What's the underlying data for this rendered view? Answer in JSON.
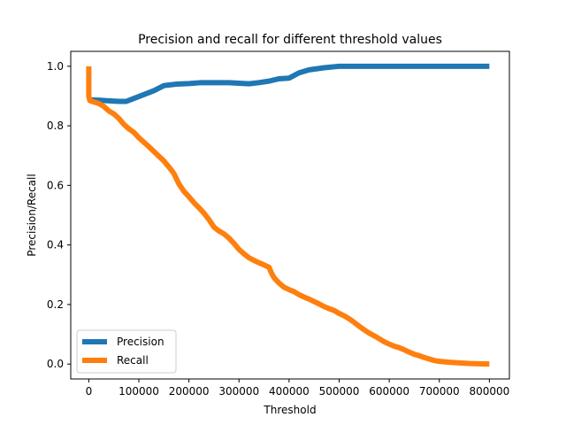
{
  "chart_data": {
    "type": "line",
    "title": "Precision and recall for different threshold values",
    "xlabel": "Threshold",
    "ylabel": "Precision/Recall",
    "xlim": [
      -36000,
      840000
    ],
    "ylim": [
      -0.05,
      1.05
    ],
    "xticks": [
      0,
      100000,
      200000,
      300000,
      400000,
      500000,
      600000,
      700000,
      800000
    ],
    "xtick_labels": [
      "0",
      "100000",
      "200000",
      "300000",
      "400000",
      "500000",
      "600000",
      "700000",
      "800000"
    ],
    "yticks": [
      0.0,
      0.2,
      0.4,
      0.6,
      0.8,
      1.0
    ],
    "ytick_labels": [
      "0.0",
      "0.2",
      "0.4",
      "0.6",
      "0.8",
      "1.0"
    ],
    "grid": false,
    "legend_position": "lower-left",
    "series": [
      {
        "name": "Precision",
        "color": "#1f77b4",
        "x": [
          0,
          20000,
          40000,
          60000,
          75000,
          90000,
          110000,
          130000,
          150000,
          175000,
          200000,
          225000,
          250000,
          280000,
          300000,
          320000,
          340000,
          360000,
          380000,
          400000,
          420000,
          440000,
          470000,
          500000,
          550000,
          600000,
          700000,
          800000
        ],
        "y": [
          0.887,
          0.886,
          0.884,
          0.882,
          0.882,
          0.892,
          0.905,
          0.918,
          0.935,
          0.94,
          0.942,
          0.945,
          0.945,
          0.945,
          0.943,
          0.941,
          0.945,
          0.95,
          0.958,
          0.96,
          0.978,
          0.988,
          0.995,
          1.0,
          1.0,
          1.0,
          1.0,
          1.0
        ]
      },
      {
        "name": "Recall",
        "color": "#ff7f0e",
        "x": [
          0,
          0,
          2000,
          10000,
          20000,
          30000,
          40000,
          50000,
          60000,
          70000,
          80000,
          90000,
          100000,
          110000,
          120000,
          130000,
          140000,
          150000,
          160000,
          170000,
          180000,
          190000,
          200000,
          210000,
          220000,
          230000,
          240000,
          250000,
          260000,
          270000,
          280000,
          290000,
          300000,
          310000,
          320000,
          330000,
          340000,
          350000,
          360000,
          365000,
          370000,
          380000,
          390000,
          400000,
          410000,
          420000,
          430000,
          440000,
          450000,
          460000,
          470000,
          480000,
          490000,
          500000,
          510000,
          520000,
          530000,
          540000,
          550000,
          560000,
          570000,
          580000,
          590000,
          600000,
          610000,
          620000,
          630000,
          640000,
          650000,
          660000,
          670000,
          680000,
          690000,
          700000,
          720000,
          740000,
          760000,
          780000,
          800000
        ],
        "y": [
          1.0,
          0.9,
          0.885,
          0.88,
          0.875,
          0.865,
          0.85,
          0.84,
          0.825,
          0.805,
          0.79,
          0.778,
          0.76,
          0.745,
          0.73,
          0.714,
          0.698,
          0.682,
          0.662,
          0.64,
          0.605,
          0.58,
          0.562,
          0.542,
          0.525,
          0.507,
          0.485,
          0.46,
          0.447,
          0.437,
          0.423,
          0.405,
          0.385,
          0.37,
          0.357,
          0.348,
          0.34,
          0.333,
          0.325,
          0.305,
          0.29,
          0.272,
          0.258,
          0.25,
          0.243,
          0.233,
          0.225,
          0.218,
          0.21,
          0.202,
          0.193,
          0.186,
          0.18,
          0.17,
          0.162,
          0.152,
          0.14,
          0.127,
          0.115,
          0.104,
          0.095,
          0.085,
          0.075,
          0.067,
          0.06,
          0.055,
          0.048,
          0.04,
          0.033,
          0.028,
          0.022,
          0.017,
          0.012,
          0.009,
          0.006,
          0.004,
          0.002,
          0.001,
          0.0
        ]
      }
    ]
  }
}
